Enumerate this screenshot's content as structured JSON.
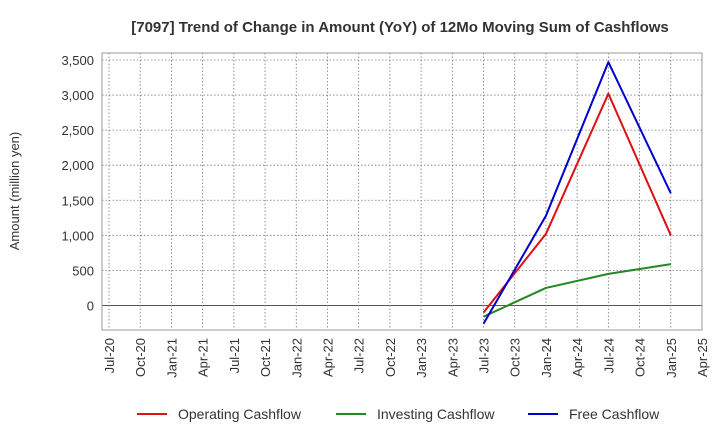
{
  "chart_data": {
    "type": "line",
    "title": "[7097]  Trend of Change in Amount (YoY) of 12Mo Moving Sum of Cashflows",
    "xlabel": "",
    "ylabel": "Amount (million yen)",
    "ylim": [
      -350,
      3600
    ],
    "yticks": [
      0,
      500,
      1000,
      1500,
      2000,
      2500,
      3000,
      3500
    ],
    "ytick_labels": [
      "0",
      "500",
      "1,000",
      "1,500",
      "2,000",
      "2,500",
      "3,000",
      "3,500"
    ],
    "categories": [
      "Jul-20",
      "Oct-20",
      "Jan-21",
      "Apr-21",
      "Jul-21",
      "Oct-21",
      "Jan-22",
      "Apr-22",
      "Jul-22",
      "Oct-22",
      "Jan-23",
      "Apr-23",
      "Jul-23",
      "Oct-23",
      "Jan-24",
      "Apr-24",
      "Jul-24",
      "Oct-24",
      "Jan-25",
      "Apr-25"
    ],
    "grid": true,
    "legend_position": "bottom",
    "series": [
      {
        "name": "Operating Cashflow",
        "color": "#dd1111",
        "values": [
          null,
          null,
          null,
          null,
          null,
          null,
          null,
          null,
          null,
          null,
          null,
          null,
          -100,
          null,
          1020,
          null,
          3020,
          null,
          1000,
          null
        ]
      },
      {
        "name": "Investing Cashflow",
        "color": "#228822",
        "values": [
          null,
          null,
          null,
          null,
          null,
          null,
          null,
          null,
          null,
          null,
          null,
          null,
          -160,
          null,
          250,
          null,
          450,
          null,
          590,
          null
        ]
      },
      {
        "name": "Free Cashflow",
        "color": "#0000cc",
        "values": [
          null,
          null,
          null,
          null,
          null,
          null,
          null,
          null,
          null,
          null,
          null,
          null,
          -260,
          null,
          1280,
          null,
          3470,
          null,
          1600,
          null
        ]
      }
    ]
  }
}
